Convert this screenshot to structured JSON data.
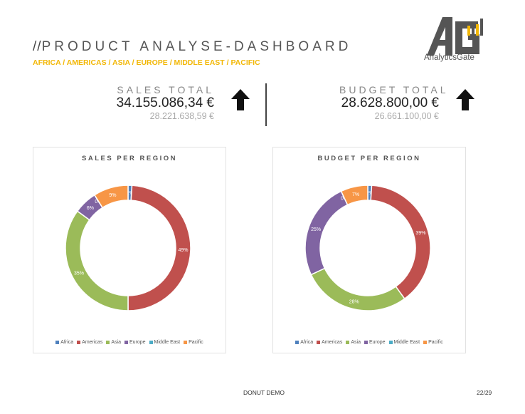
{
  "header": {
    "title_slashes": "//",
    "title": "PRODUCT ANALYSE-DASHBOARD",
    "subtitle": "AFRICA / AMERICAS / ASIA / EUROPE / MIDDLE EAST / PACIFIC",
    "logo_text": "AnalyticsGate",
    "colors": {
      "subtitle": "#f2b705",
      "logo_dark": "#555555",
      "logo_bars": [
        "#f2b705",
        "#4a4a4a"
      ]
    }
  },
  "kpis": {
    "sales": {
      "label": "SALES TOTAL",
      "value": "34.155.086,34 €",
      "previous": "28.221.638,59 €",
      "trend_icon": "arrow-up-icon"
    },
    "budget": {
      "label": "BUDGET TOTAL",
      "value": "28.628.800,00 €",
      "previous": "26.661.100,00 €",
      "trend_icon": "arrow-up-icon"
    }
  },
  "footer": {
    "center": "DONUT DEMO",
    "page": "22/29"
  },
  "colors": {
    "Africa": "#4f81bd",
    "Americas": "#c0504d",
    "Asia": "#9bbb59",
    "Europe": "#8064a2",
    "Middle East": "#4bacc6",
    "Pacific": "#f79646"
  },
  "chart_data": [
    {
      "type": "donut",
      "title": "SALES PER REGION",
      "categories": [
        "Africa",
        "Americas",
        "Asia",
        "Europe",
        "Middle East",
        "Pacific"
      ],
      "values": [
        1,
        49,
        35,
        6,
        0,
        9
      ],
      "labels": [
        "1%",
        "49%",
        "35%",
        "6%",
        "0%",
        "9%"
      ],
      "legend_position": "bottom"
    },
    {
      "type": "donut",
      "title": "BUDGET PER REGION",
      "categories": [
        "Africa",
        "Americas",
        "Asia",
        "Europe",
        "Middle East",
        "Pacific"
      ],
      "values": [
        1,
        39,
        28,
        25,
        0,
        7
      ],
      "labels": [
        "1%",
        "39%",
        "28%",
        "25%",
        "0%",
        "7%"
      ],
      "legend_position": "bottom"
    }
  ]
}
